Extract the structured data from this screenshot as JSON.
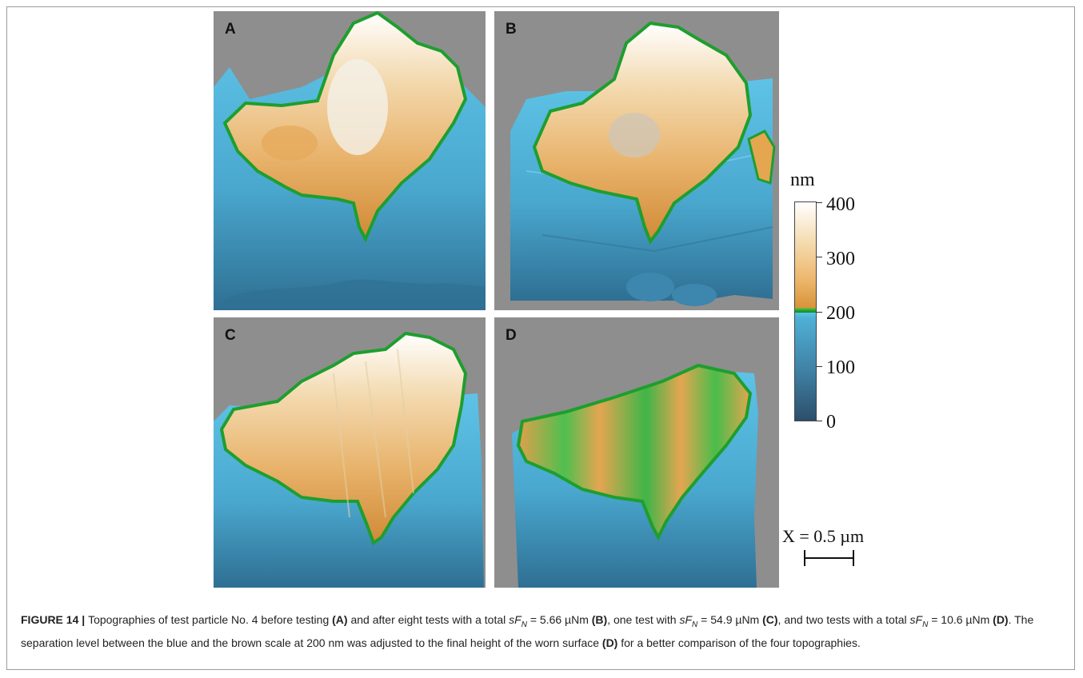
{
  "figure": {
    "panels": [
      {
        "letter": "A"
      },
      {
        "letter": "B"
      },
      {
        "letter": "C"
      },
      {
        "letter": "D"
      }
    ],
    "colorbar": {
      "unit": "nm",
      "ticks": [
        "400",
        "300",
        "200",
        "100",
        "0"
      ],
      "range": [
        0,
        400
      ],
      "separation_level": 200,
      "colors": {
        "low": "#2c4f6a",
        "mid_blue": "#4fb0d6",
        "separation": "#1e9e2e",
        "mid_brown": "#d89339",
        "high": "#ffffff"
      }
    },
    "scale_bar": {
      "label": "X = 0.5 µm"
    }
  },
  "caption": {
    "label": "FIGURE 14",
    "separator": " | ",
    "t1": "Topographies of test particle No. 4 before testing ",
    "a": "(A)",
    "t2": " and after eight tests with a total ",
    "sym1": "sF",
    "sub1": "N",
    "t3": " = 5.66 µNm ",
    "b": "(B)",
    "t4": ", one test with ",
    "sym2": "sF",
    "sub2": "N",
    "t5": " = 54.9 µNm ",
    "c": "(C)",
    "t6": ", and two tests with a total ",
    "sym3": "sF",
    "sub3": "N",
    "t7": " = 10.6 µNm ",
    "d": "(D)",
    "t8": ". The separation level between the blue and the brown scale at 200 nm was adjusted to the final height of the worn surface ",
    "d2": "(D)",
    "t9": " for a better comparison of the four topographies."
  }
}
